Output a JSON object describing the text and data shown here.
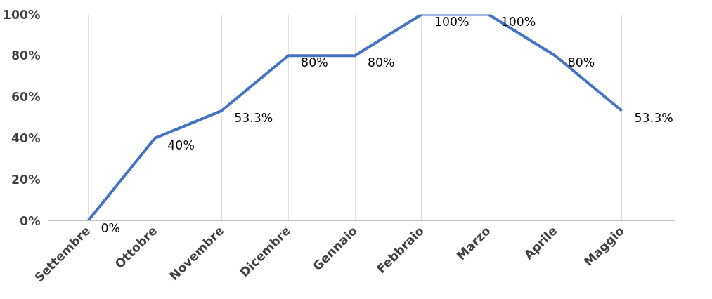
{
  "chart_data": {
    "type": "line",
    "categories": [
      "Settembre",
      "Ottobre",
      "Novembre",
      "Dicembre",
      "Gennaio",
      "Febbraio",
      "Marzo",
      "Aprile",
      "Maggio"
    ],
    "series": [
      {
        "color": "#4472c4",
        "values": [
          0,
          40,
          53.3,
          80,
          80,
          100,
          100,
          80,
          53.3
        ]
      }
    ],
    "value_labels": [
      "0%",
      "40%",
      "53.3%",
      "80%",
      "80%",
      "100%",
      "100%",
      "80%",
      "53.3%"
    ],
    "ylim": [
      0,
      100
    ],
    "yticks": [
      {
        "value": 0,
        "label": "0%"
      },
      {
        "value": 20,
        "label": "20%"
      },
      {
        "value": 40,
        "label": "40%"
      },
      {
        "value": 60,
        "label": "60%"
      },
      {
        "value": 80,
        "label": "80%"
      },
      {
        "value": 100,
        "label": "100%"
      }
    ],
    "grid": "x",
    "marker": "none",
    "line_style": "solid"
  }
}
